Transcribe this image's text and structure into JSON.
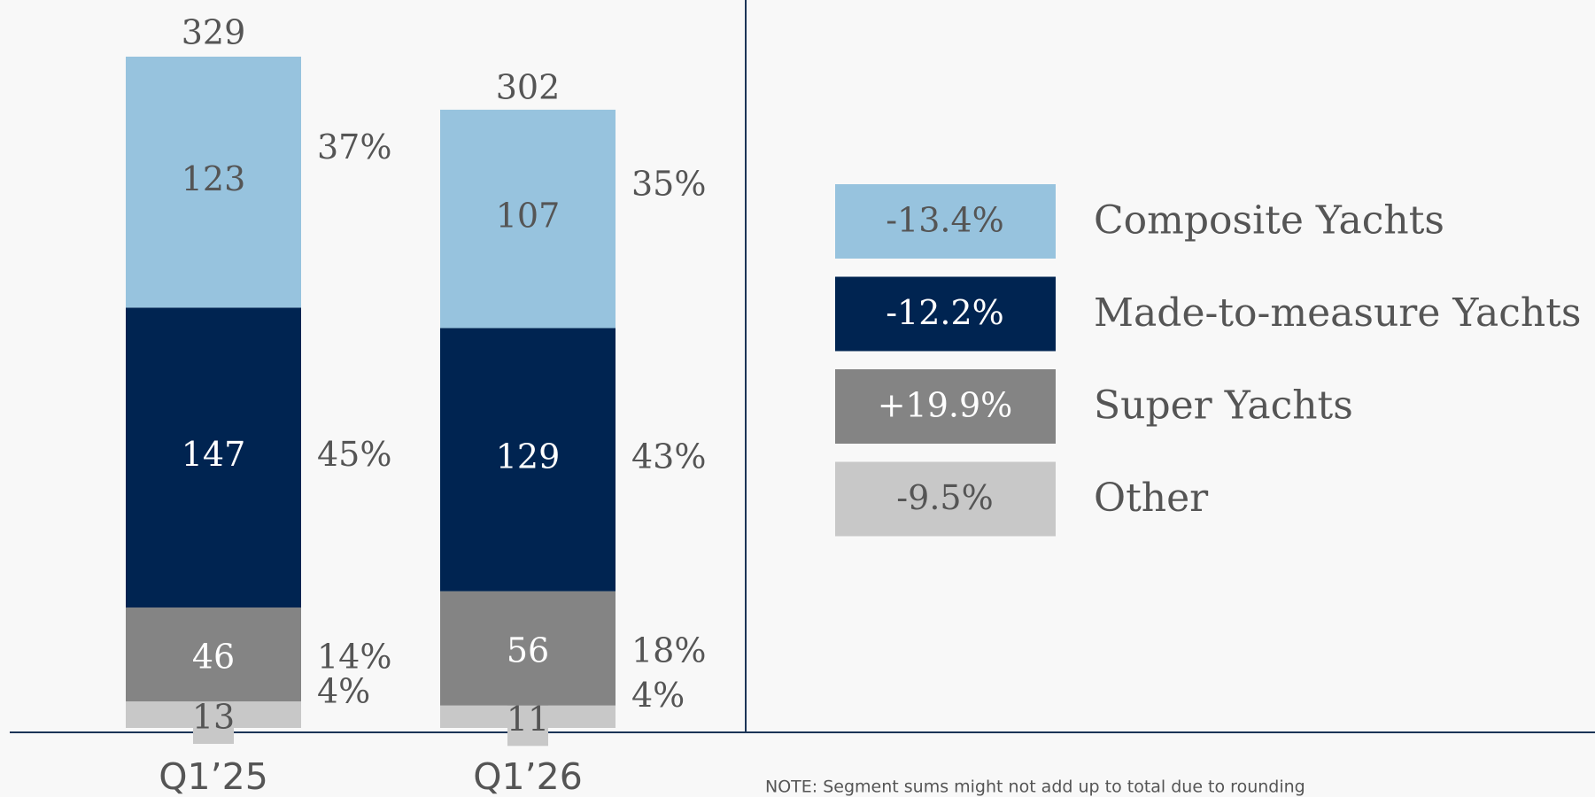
{
  "chart_data": {
    "type": "bar",
    "stacked": true,
    "categories": [
      "Q1’25",
      "Q1’26"
    ],
    "totals": [
      329,
      302
    ],
    "series": [
      {
        "name": "Other",
        "color": "#c8c8c8",
        "values": [
          13,
          11
        ],
        "share_labels": [
          "4%",
          "4%"
        ],
        "change": "-9.5%"
      },
      {
        "name": "Super Yachts",
        "color": "#848484",
        "values": [
          46,
          56
        ],
        "share_labels": [
          "14%",
          "18%"
        ],
        "change": "+19.9%"
      },
      {
        "name": "Made-to-measure Yachts",
        "color": "#002451",
        "values": [
          147,
          129
        ],
        "share_labels": [
          "45%",
          "43%"
        ],
        "change": "-12.2%"
      },
      {
        "name": "Composite Yachts",
        "color": "#97c3de",
        "values": [
          123,
          107
        ],
        "share_labels": [
          "37%",
          "35%"
        ],
        "change": "-13.4%"
      }
    ],
    "note": "NOTE: Segment sums might not add up to total due to rounding"
  }
}
